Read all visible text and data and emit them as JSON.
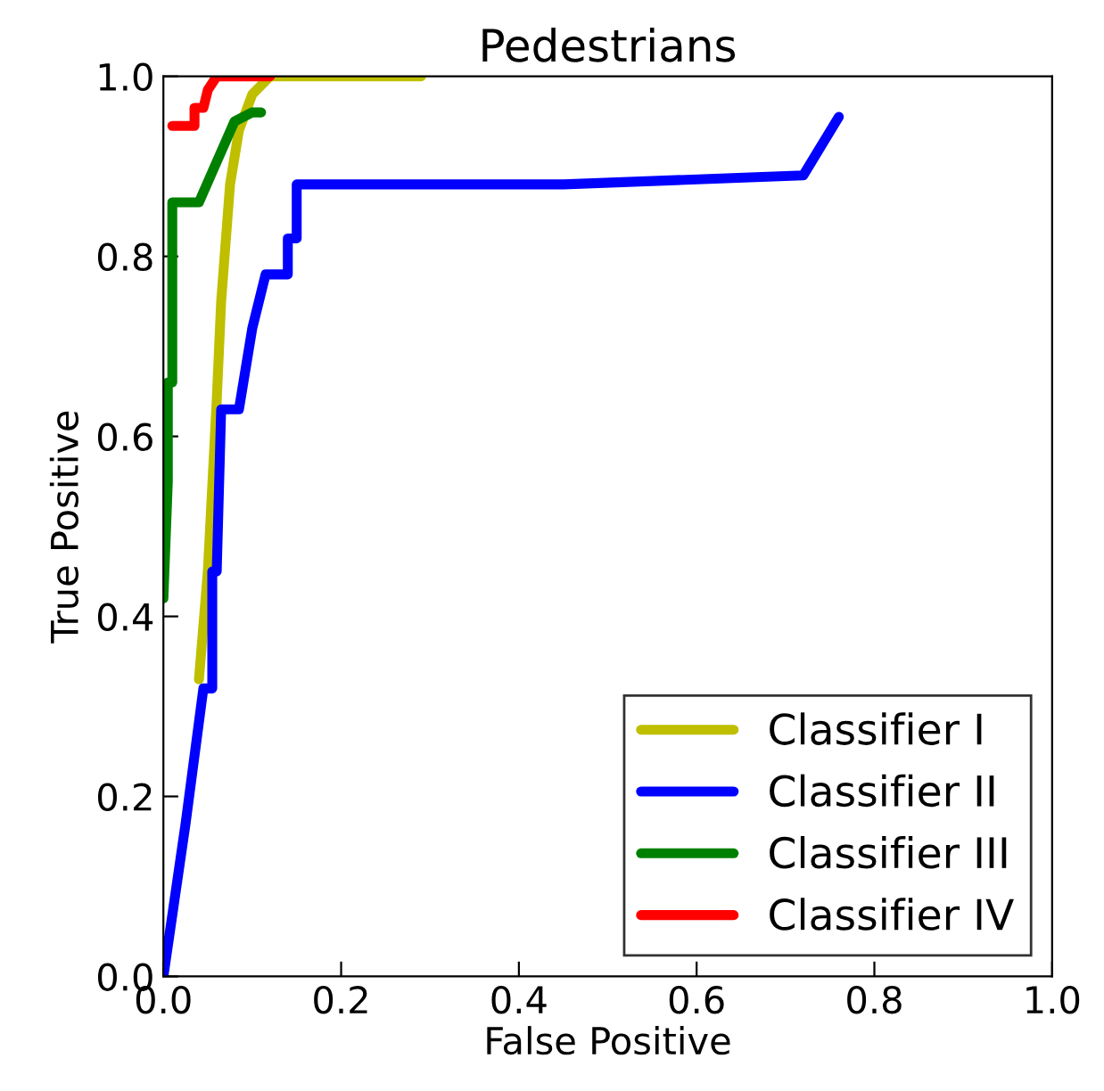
{
  "chart_data": {
    "type": "line",
    "title": "Pedestrians",
    "xlabel": "False Positive",
    "ylabel": "True Positive",
    "xlim": [
      0,
      1
    ],
    "ylim": [
      0,
      1
    ],
    "xticks": [
      {
        "value": 0,
        "label": "0.0"
      },
      {
        "value": 0.2,
        "label": "0.2"
      },
      {
        "value": 0.4,
        "label": "0.4"
      },
      {
        "value": 0.6,
        "label": "0.6"
      },
      {
        "value": 0.8,
        "label": "0.8"
      },
      {
        "value": 1,
        "label": "1.0"
      }
    ],
    "yticks": [
      {
        "value": 0,
        "label": "0.0"
      },
      {
        "value": 0.2,
        "label": "0.2"
      },
      {
        "value": 0.4,
        "label": "0.4"
      },
      {
        "value": 0.6,
        "label": "0.6"
      },
      {
        "value": 0.8,
        "label": "0.8"
      },
      {
        "value": 1,
        "label": "1.0"
      }
    ],
    "grid": false,
    "legend": "bottom right",
    "marker": "none",
    "line_style": "solid",
    "series": [
      {
        "name": "Classifier I",
        "color": "#bfbf00",
        "x": [
          0.04,
          0.05,
          0.06,
          0.065,
          0.075,
          0.085,
          0.1,
          0.12,
          0.29
        ],
        "values": [
          0.33,
          0.45,
          0.64,
          0.75,
          0.88,
          0.94,
          0.98,
          1.0,
          1.0
        ]
      },
      {
        "name": "Classifier II",
        "color": "#0000ff",
        "x": [
          0,
          0.025,
          0.045,
          0.055,
          0.055,
          0.06,
          0.065,
          0.085,
          0.1,
          0.115,
          0.14,
          0.14,
          0.15,
          0.15,
          0.45,
          0.72,
          0.76
        ],
        "values": [
          0,
          0.17,
          0.32,
          0.32,
          0.45,
          0.45,
          0.63,
          0.63,
          0.72,
          0.78,
          0.78,
          0.82,
          0.82,
          0.88,
          0.88,
          0.89,
          0.955
        ]
      },
      {
        "name": "Classifier III",
        "color": "#008000",
        "x": [
          0,
          0.005,
          0.005,
          0.01,
          0.01,
          0.04,
          0.08,
          0.1,
          0.11
        ],
        "values": [
          0.42,
          0.55,
          0.66,
          0.66,
          0.86,
          0.86,
          0.95,
          0.96,
          0.96
        ]
      },
      {
        "name": "Classifier IV",
        "color": "#ff0000",
        "x": [
          0.01,
          0.035,
          0.035,
          0.045,
          0.05,
          0.06,
          0.12
        ],
        "values": [
          0.945,
          0.945,
          0.965,
          0.965,
          0.985,
          1.0,
          1.0
        ]
      }
    ]
  }
}
